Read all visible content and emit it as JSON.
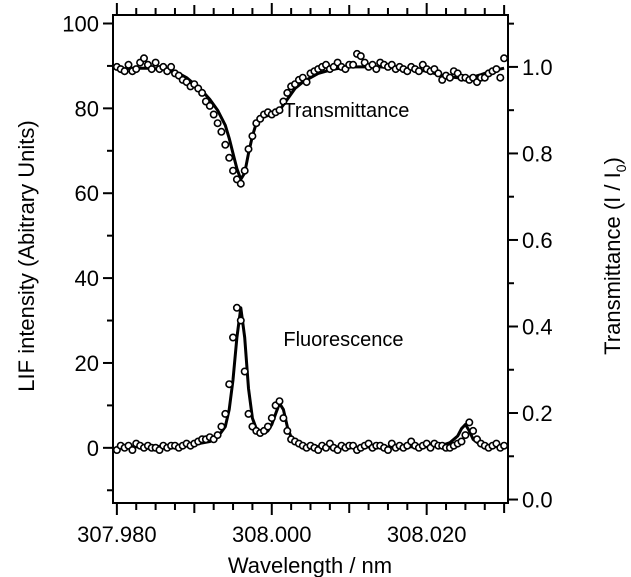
{
  "chart_data": {
    "type": "scatter",
    "xlabel": "Wavelength / nm",
    "ylabel_left": "LIF intensity (Abitrary Units)",
    "ylabel_right_main": "Transmittance (I / I",
    "ylabel_right_sub": "0",
    "ylabel_right_close": ")",
    "xlim": [
      307.9795,
      308.0305
    ],
    "ylim_left": [
      -13,
      102
    ],
    "ylim_right": [
      -0.008,
      1.12
    ],
    "x_ticks": [
      307.98,
      308.0,
      308.02
    ],
    "x_tick_labels": [
      "307.980",
      "308.000",
      "308.020"
    ],
    "y_left_ticks": [
      0,
      20,
      40,
      60,
      80,
      100
    ],
    "y_left_tick_labels": [
      "0",
      "20",
      "40",
      "60",
      "80",
      "100"
    ],
    "y_right_ticks": [
      0.0,
      0.2,
      0.4,
      0.6,
      0.8,
      1.0
    ],
    "y_right_tick_labels": [
      "0.0",
      "0.2",
      "0.4",
      "0.6",
      "0.8",
      "1.0"
    ],
    "annotations": [
      {
        "text": "Transmittance",
        "x": 308.0015,
        "y_left": 78
      },
      {
        "text": "Fluorescence",
        "x": 308.0015,
        "y_left": 24
      }
    ],
    "series": [
      {
        "axis": "right",
        "x": [
          307.98,
          307.9805,
          307.981,
          307.9815,
          307.982,
          307.9825,
          307.983,
          307.9835,
          307.984,
          307.9845,
          307.985,
          307.9855,
          307.986,
          307.9865,
          307.987,
          307.9875,
          307.988,
          307.9885,
          307.989,
          307.9895,
          307.99,
          307.9905,
          307.991,
          307.9915,
          307.992,
          307.9925,
          307.993,
          307.9935,
          307.994,
          307.9945,
          307.995,
          307.9955,
          307.996,
          307.9965,
          307.997,
          307.9975,
          307.998,
          307.9985,
          307.999,
          307.9995,
          308.0,
          308.0005,
          308.001,
          308.0015,
          308.002,
          308.0025,
          308.003,
          308.0035,
          308.004,
          308.0045,
          308.005,
          308.0055,
          308.006,
          308.0065,
          308.007,
          308.0075,
          308.008,
          308.0085,
          308.009,
          308.0095,
          308.01,
          308.0105,
          308.011,
          308.0115,
          308.012,
          308.0125,
          308.013,
          308.0135,
          308.014,
          308.0145,
          308.015,
          308.0155,
          308.016,
          308.0165,
          308.017,
          308.0175,
          308.018,
          308.0185,
          308.019,
          308.0195,
          308.02,
          308.0205,
          308.021,
          308.0215,
          308.022,
          308.0225,
          308.023,
          308.0235,
          308.024,
          308.0245,
          308.025,
          308.0255,
          308.026,
          308.0265,
          308.027,
          308.0275,
          308.028,
          308.0285,
          308.029,
          308.0295,
          308.03
        ],
        "values": [
          1.0,
          0.995,
          0.99,
          1.005,
          0.99,
          0.995,
          1.01,
          1.02,
          1.005,
          0.995,
          1.01,
          0.995,
          1.0,
          0.99,
          1.0,
          0.985,
          0.98,
          0.97,
          0.965,
          0.955,
          0.96,
          0.95,
          0.94,
          0.92,
          0.91,
          0.89,
          0.87,
          0.85,
          0.82,
          0.79,
          0.76,
          0.74,
          0.73,
          0.76,
          0.81,
          0.84,
          0.87,
          0.88,
          0.89,
          0.895,
          0.89,
          0.895,
          0.9,
          0.92,
          0.94,
          0.955,
          0.96,
          0.97,
          0.975,
          0.965,
          0.985,
          0.99,
          0.995,
          1.0,
          1.005,
          0.995,
          1.0,
          1.01,
          1.0,
          0.995,
          1.005,
          1.005,
          1.03,
          1.025,
          1.01,
          1.0,
          1.005,
          0.995,
          1.01,
          1.005,
          1.0,
          1.005,
          0.995,
          1.0,
          0.995,
          0.99,
          1.0,
          0.995,
          0.99,
          1.005,
          0.995,
          0.99,
          0.995,
          0.985,
          0.97,
          0.98,
          0.975,
          0.99,
          0.985,
          0.975,
          0.975,
          0.97,
          0.975,
          0.965,
          0.975,
          0.975,
          0.985,
          0.99,
          0.995,
          0.975,
          1.02
        ]
      },
      {
        "axis": "left",
        "x": [
          307.98,
          307.9805,
          307.981,
          307.9815,
          307.982,
          307.9825,
          307.983,
          307.9835,
          307.984,
          307.9845,
          307.985,
          307.9855,
          307.986,
          307.9865,
          307.987,
          307.9875,
          307.988,
          307.9885,
          307.989,
          307.9895,
          307.99,
          307.9905,
          307.991,
          307.9915,
          307.992,
          307.9925,
          307.993,
          307.9935,
          307.994,
          307.9945,
          307.995,
          307.9955,
          307.996,
          307.9965,
          307.997,
          307.9975,
          307.998,
          307.9985,
          307.999,
          307.9995,
          308.0,
          308.0005,
          308.001,
          308.0015,
          308.002,
          308.0025,
          308.003,
          308.0035,
          308.004,
          308.0045,
          308.005,
          308.0055,
          308.006,
          308.0065,
          308.007,
          308.0075,
          308.008,
          308.0085,
          308.009,
          308.0095,
          308.01,
          308.0105,
          308.011,
          308.0115,
          308.012,
          308.0125,
          308.013,
          308.0135,
          308.014,
          308.0145,
          308.015,
          308.0155,
          308.016,
          308.0165,
          308.017,
          308.0175,
          308.018,
          308.0185,
          308.019,
          308.0195,
          308.02,
          308.0205,
          308.021,
          308.0215,
          308.022,
          308.0225,
          308.023,
          308.0235,
          308.024,
          308.0245,
          308.025,
          308.0255,
          308.026,
          308.0265,
          308.027,
          308.0275,
          308.028,
          308.0285,
          308.029,
          308.0295,
          308.03
        ],
        "values": [
          -0.5,
          0.5,
          0,
          0.5,
          -0.5,
          1,
          0.5,
          0,
          0.5,
          0,
          0,
          -0.5,
          0.5,
          0,
          0.5,
          0.5,
          0,
          0.5,
          1,
          0.5,
          1,
          1.5,
          2,
          2,
          2.5,
          2,
          3,
          5,
          8,
          15,
          26,
          33,
          30,
          18,
          8,
          5,
          4,
          3.5,
          4,
          5,
          7,
          10,
          11,
          7,
          4,
          2,
          1.5,
          1,
          0.5,
          0,
          0.5,
          0,
          -0.5,
          0.5,
          0,
          1,
          0,
          -0.5,
          0.5,
          0,
          0.5,
          0.5,
          -0.5,
          0,
          0.5,
          1,
          0,
          0.5,
          0.5,
          0,
          -0.5,
          1,
          0,
          0.5,
          0,
          0.5,
          1.5,
          0.5,
          0,
          0.5,
          1,
          0,
          1,
          0.5,
          0.5,
          0,
          0,
          0.5,
          1,
          1.5,
          3,
          6,
          4,
          2,
          1,
          0.5,
          0,
          0.5,
          1,
          0,
          0.5
        ]
      }
    ],
    "fit_curves": [
      {
        "axis": "right",
        "x": [
          307.98,
          307.982,
          307.984,
          307.986,
          307.988,
          307.989,
          307.99,
          307.991,
          307.992,
          307.993,
          307.994,
          307.9945,
          307.995,
          307.9955,
          307.996,
          307.9965,
          307.997,
          307.9975,
          307.998,
          307.999,
          308.0,
          308.001,
          308.002,
          308.003,
          308.004,
          308.005,
          308.006,
          308.008,
          308.01,
          308.012,
          308.014,
          308.016,
          308.018,
          308.02,
          308.021,
          308.022,
          308.023,
          308.024,
          308.025,
          308.026,
          308.027,
          308.028,
          308.029,
          308.03
        ],
        "values": [
          0.995,
          0.997,
          0.997,
          0.995,
          0.985,
          0.975,
          0.96,
          0.945,
          0.925,
          0.9,
          0.865,
          0.835,
          0.8,
          0.765,
          0.74,
          0.755,
          0.8,
          0.84,
          0.87,
          0.885,
          0.89,
          0.9,
          0.925,
          0.95,
          0.965,
          0.975,
          0.985,
          0.995,
          1.0,
          1.0,
          1.0,
          0.998,
          0.995,
          0.99,
          0.985,
          0.98,
          0.977,
          0.975,
          0.975,
          0.977,
          0.982,
          0.988,
          0.993,
          0.997
        ]
      },
      {
        "axis": "left",
        "x": [
          307.98,
          307.985,
          307.99,
          307.992,
          307.993,
          307.994,
          307.9945,
          307.995,
          307.9955,
          307.996,
          307.9965,
          307.997,
          307.9975,
          307.998,
          307.999,
          307.9995,
          308.0,
          308.0005,
          308.001,
          308.0015,
          308.002,
          308.0025,
          308.003,
          308.004,
          308.006,
          308.01,
          308.015,
          308.02,
          308.022,
          308.023,
          308.024,
          308.0245,
          308.025,
          308.0255,
          308.026,
          308.027,
          308.03
        ],
        "values": [
          0.2,
          0.3,
          0.8,
          1.5,
          2.5,
          5,
          9,
          16,
          26,
          33,
          26,
          14,
          7,
          4.5,
          3.5,
          4,
          5.5,
          8,
          10.5,
          9,
          5,
          2.5,
          1.2,
          0.6,
          0.3,
          0.2,
          0.2,
          0.3,
          0.6,
          1.2,
          2.8,
          4.5,
          5.5,
          4,
          2,
          0.6,
          0.2
        ]
      }
    ]
  }
}
